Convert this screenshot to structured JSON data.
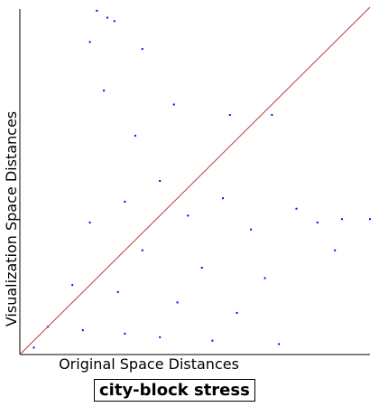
{
  "chart_data": {
    "type": "scatter",
    "title": "city-block stress",
    "xlabel": "Original Space Distances",
    "ylabel": "Visualization Space Distances",
    "xlim": [
      0,
      1
    ],
    "ylim": [
      0,
      1
    ],
    "grid": false,
    "point_color": "#0000ff",
    "reference_line": {
      "description": "identity diagonal y = x",
      "color": "#cc3333"
    },
    "series": [
      {
        "values": [
          [
            0.22,
            0.99
          ],
          [
            0.25,
            0.97
          ],
          [
            0.27,
            0.96
          ],
          [
            0.2,
            0.9
          ],
          [
            0.35,
            0.88
          ],
          [
            0.24,
            0.76
          ],
          [
            0.44,
            0.72
          ],
          [
            0.6,
            0.69
          ],
          [
            0.33,
            0.63
          ],
          [
            0.72,
            0.69
          ],
          [
            0.4,
            0.5
          ],
          [
            0.58,
            0.45
          ],
          [
            0.79,
            0.42
          ],
          [
            0.92,
            0.39
          ],
          [
            1.0,
            0.39
          ],
          [
            0.3,
            0.44
          ],
          [
            0.48,
            0.4
          ],
          [
            0.66,
            0.36
          ],
          [
            0.85,
            0.38
          ],
          [
            0.2,
            0.38
          ],
          [
            0.35,
            0.3
          ],
          [
            0.52,
            0.25
          ],
          [
            0.7,
            0.22
          ],
          [
            0.9,
            0.3
          ],
          [
            0.15,
            0.2
          ],
          [
            0.28,
            0.18
          ],
          [
            0.45,
            0.15
          ],
          [
            0.62,
            0.12
          ],
          [
            0.08,
            0.08
          ],
          [
            0.18,
            0.07
          ],
          [
            0.3,
            0.06
          ],
          [
            0.4,
            0.05
          ],
          [
            0.55,
            0.04
          ],
          [
            0.74,
            0.03
          ],
          [
            0.04,
            0.02
          ]
        ]
      }
    ]
  }
}
